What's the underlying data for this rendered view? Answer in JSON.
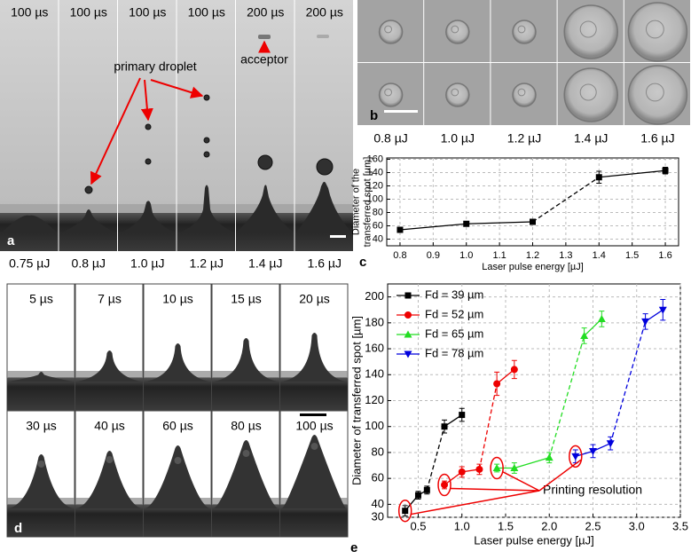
{
  "panel_a": {
    "letter": "a",
    "time_labels": [
      "100 µs",
      "100 µs",
      "100 µs",
      "100 µs",
      "200 µs",
      "200 µs"
    ],
    "energy_labels": [
      "0.75 µJ",
      "0.8 µJ",
      "1.0 µJ",
      "1.2 µJ",
      "1.4 µJ",
      "1.6 µJ"
    ],
    "annotations": [
      "primary droplet",
      "acceptor"
    ]
  },
  "panel_b": {
    "letter": "b",
    "energy_labels": [
      "0.8 µJ",
      "1.0 µJ",
      "1.2 µJ",
      "1.4 µJ",
      "1.6 µJ"
    ]
  },
  "panel_d": {
    "letter": "d",
    "time_labels": [
      "5 µs",
      "7 µs",
      "10 µs",
      "15 µs",
      "20 µs",
      "30 µs",
      "40 µs",
      "60 µs",
      "80 µs",
      "100 µs"
    ]
  },
  "chart_data": [
    {
      "type": "line",
      "letter": "c",
      "xlabel": "Laser pulse energy [µJ]",
      "ylabel": [
        "Diameter of the",
        "transferred spot [µm]"
      ],
      "xlim": [
        0.76,
        1.64
      ],
      "ylim": [
        30,
        162
      ],
      "xticks": [
        0.8,
        0.9,
        {
          "value": 1,
          "label": "1.0"
        },
        1.1,
        1.2,
        1.3,
        1.4,
        1.5,
        1.6
      ],
      "yticks": [
        40,
        60,
        80,
        100,
        120,
        140,
        160
      ],
      "grid": true,
      "series": [
        {
          "color": "#000000",
          "marker": "square",
          "dashed_from": 2,
          "x": [
            0.8,
            1,
            1.2,
            1.4,
            1.6
          ],
          "values": [
            54,
            63,
            66,
            133,
            143
          ],
          "errors": [
            3,
            3,
            3,
            9,
            5
          ]
        }
      ]
    },
    {
      "type": "line",
      "letter": "e",
      "xlabel": "Laser pulse energy [µJ]",
      "ylabel": [
        "Diameter of transferred spot [µm]"
      ],
      "xlim": [
        0.15,
        3.5
      ],
      "ylim": [
        30,
        210
      ],
      "xticks": [
        0.5,
        {
          "value": 1,
          "label": "1.0"
        },
        1.5,
        {
          "value": 2,
          "label": "2.0"
        },
        2.5,
        {
          "value": 3,
          "label": "3.0"
        },
        3.5
      ],
      "yticks": [
        30,
        40,
        60,
        80,
        100,
        120,
        140,
        160,
        180,
        200
      ],
      "grid": true,
      "legend": "upper-left",
      "annotation": "Printing resolution",
      "series": [
        {
          "name": "Fd = 39 µm",
          "color": "#000000",
          "marker": "square",
          "dashed_from": 2,
          "x": [
            0.35,
            0.5,
            0.6,
            0.8,
            1
          ],
          "values": [
            35,
            47,
            51,
            100,
            109
          ],
          "errors": [
            4,
            3,
            3,
            5,
            5
          ]
        },
        {
          "name": "Fd = 52 µm",
          "color": "#ee0000",
          "marker": "circle",
          "dashed_from": 2,
          "x": [
            0.8,
            1,
            1.2,
            1.4,
            1.6
          ],
          "values": [
            55,
            65,
            67,
            133,
            144
          ],
          "errors": [
            3,
            4,
            4,
            9,
            7
          ]
        },
        {
          "name": "Fd = 65 µm",
          "color": "#22dd22",
          "marker": "triangle-up",
          "dashed_from": 2,
          "x": [
            1.4,
            1.6,
            2,
            2.4,
            2.6
          ],
          "values": [
            68,
            68,
            76,
            170,
            183
          ],
          "errors": [
            3,
            4,
            4,
            6,
            6
          ]
        },
        {
          "name": "Fd = 78 µm",
          "color": "#0000dd",
          "marker": "triangle-down",
          "dashed_from": 2,
          "x": [
            2.3,
            2.5,
            2.7,
            3.1,
            3.3
          ],
          "values": [
            77,
            81,
            87,
            181,
            190
          ],
          "errors": [
            5,
            5,
            5,
            6,
            8
          ]
        }
      ]
    }
  ]
}
